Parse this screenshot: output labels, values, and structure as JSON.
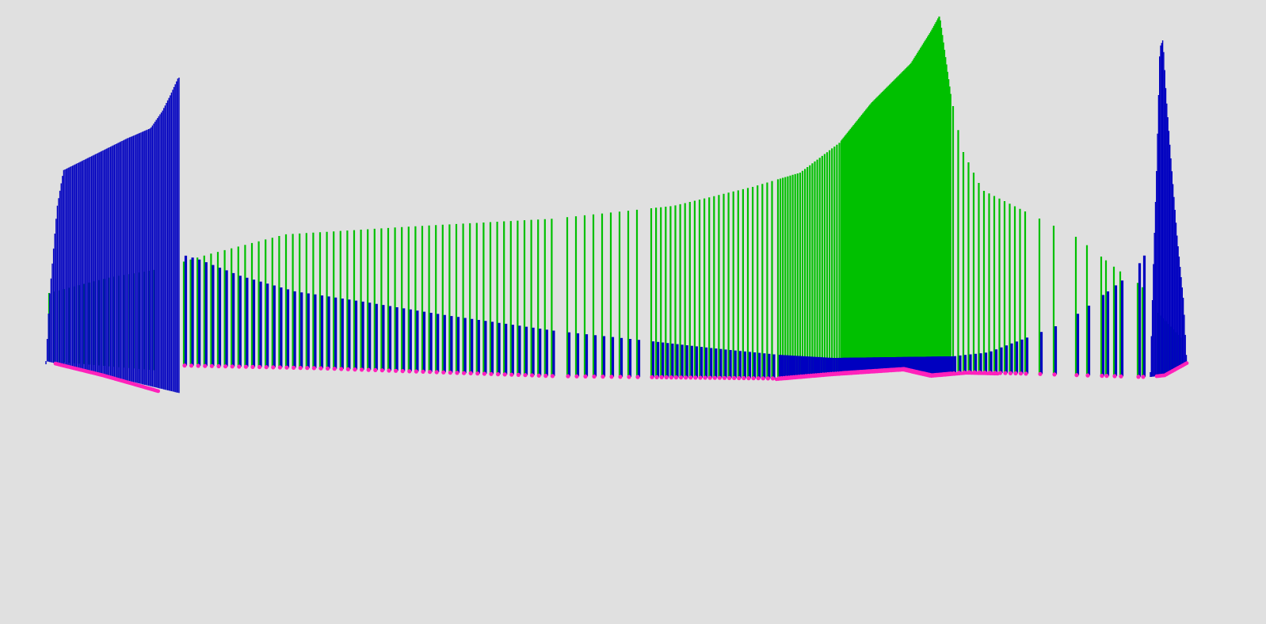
{
  "viewport": {
    "background": "#e0e0e0"
  },
  "scene": {
    "description_kind": "3d-vertical-segment-field",
    "colors": {
      "green_segment": "#00c000",
      "blue_segment": "#0000c0",
      "base_marker": "#ff22bb"
    }
  }
}
